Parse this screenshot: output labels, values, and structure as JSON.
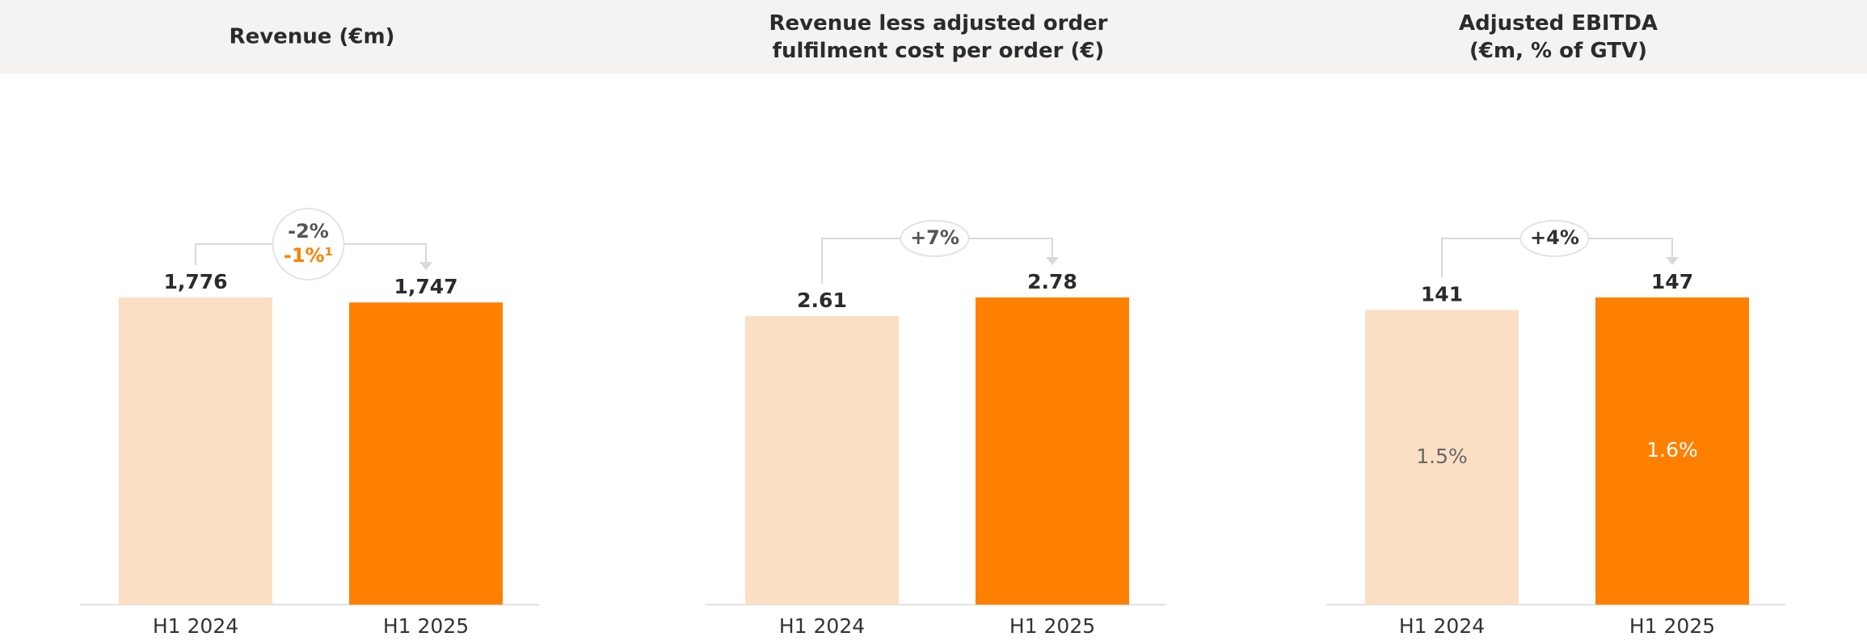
{
  "chart_data": [
    {
      "type": "bar",
      "title": "Revenue (€m)",
      "categories": [
        "H1 2024",
        "H1 2025"
      ],
      "values": [
        1776,
        1747
      ],
      "value_labels": [
        "1,776",
        "1,747"
      ],
      "colors": [
        "#fbdfc4",
        "#ff8000"
      ],
      "annotations": [
        "-2%",
        "-1%¹"
      ],
      "annotation_colors": [
        "#555555",
        "#ff8000"
      ]
    },
    {
      "type": "bar",
      "title": "Revenue less adjusted order\nfulfilment cost per order (€)",
      "categories": [
        "H1 2024",
        "H1 2025"
      ],
      "values": [
        2.61,
        2.78
      ],
      "colors": [
        "#fbdfc4",
        "#ff8000"
      ],
      "annotations": [
        "+7%"
      ],
      "annotation_colors": [
        "#555555"
      ]
    },
    {
      "type": "bar",
      "title": "Adjusted EBITDA\n(€m, % of GTV)",
      "categories": [
        "H1 2024",
        "H1 2025"
      ],
      "values": [
        141,
        147
      ],
      "colors": [
        "#fbdfc4",
        "#ff8000"
      ],
      "annotations": [
        "+4%"
      ],
      "annotation_colors": [
        "#333333"
      ],
      "inner_values": [
        1.5,
        1.6
      ],
      "inner_labels": [
        "1.5%",
        "1.6%"
      ],
      "inner_label_colors": [
        "#666666",
        "#ffffff"
      ]
    }
  ]
}
